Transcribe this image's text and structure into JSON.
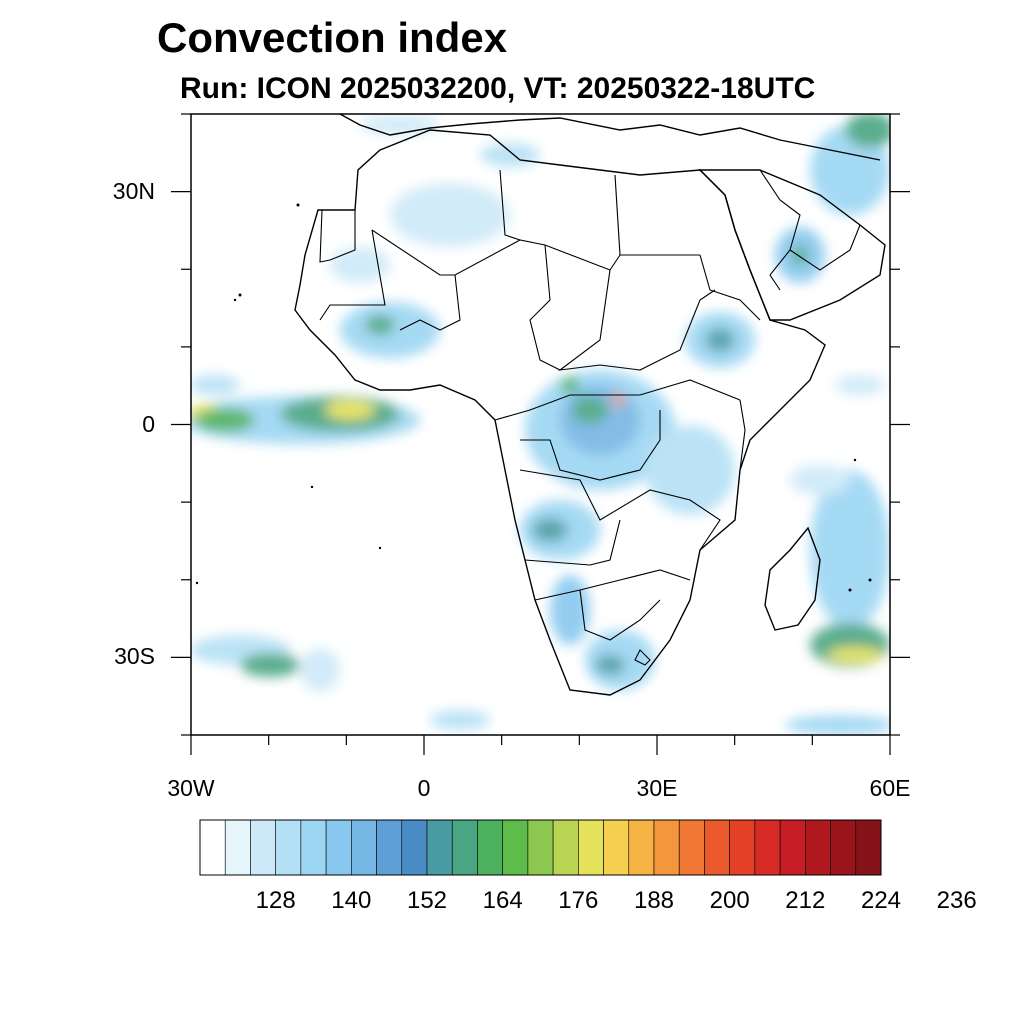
{
  "header": {
    "title": "Convection index",
    "subtitle": "Run: ICON 2025032200,  VT: 20250322-18UTC"
  },
  "axes": {
    "lat_ticks": [
      {
        "label": "30N",
        "lat": 30
      },
      {
        "label": "0",
        "lat": 0
      },
      {
        "label": "30S",
        "lat": -30
      }
    ],
    "lon_ticks": [
      {
        "label": "30W",
        "lon": -30
      },
      {
        "label": "0",
        "lon": 0
      },
      {
        "label": "30E",
        "lon": 30
      },
      {
        "label": "60E",
        "lon": 60
      }
    ],
    "lat_range": [
      -40,
      40
    ],
    "lon_range": [
      -30,
      60
    ]
  },
  "colorbar": {
    "labels": [
      "128",
      "140",
      "152",
      "164",
      "176",
      "188",
      "200",
      "212",
      "224",
      "236"
    ],
    "colors": [
      "#ffffff",
      "#e6f4fb",
      "#cde9f8",
      "#b4e0f5",
      "#9cd6f3",
      "#88c8ee",
      "#76b6e4",
      "#5e9fd6",
      "#4a8cc6",
      "#4a9ca4",
      "#4aa582",
      "#4cb05c",
      "#5ebc4a",
      "#8cc850",
      "#b8d452",
      "#e4e25a",
      "#f6d050",
      "#f6b444",
      "#f4963c",
      "#f07834",
      "#ea5a2c",
      "#e44026",
      "#d82a26",
      "#c61e24",
      "#b01820",
      "#9a141c",
      "#86121a"
    ]
  },
  "map": {
    "land_color": "#ffffff",
    "border_color": "#000000"
  }
}
